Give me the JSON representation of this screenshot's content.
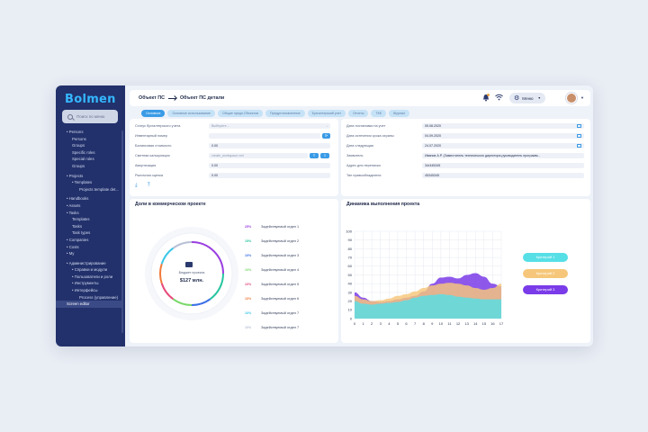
{
  "app": {
    "logo": "Bolmen"
  },
  "search": {
    "placeholder": "Поиск по меню"
  },
  "nav": [
    {
      "label": "• Persons",
      "lvl": 0
    },
    {
      "label": "Persons",
      "lvl": 1
    },
    {
      "label": "Groups",
      "lvl": 1
    },
    {
      "label": "Specific roles",
      "lvl": 1
    },
    {
      "label": "Special roles",
      "lvl": 1
    },
    {
      "label": "Groups",
      "lvl": 1
    },
    {
      "label": "• Projects",
      "lvl": 0
    },
    {
      "label": "• Templates",
      "lvl": 1
    },
    {
      "label": "Projects template det...",
      "lvl": 2
    },
    {
      "label": "• Handbooks",
      "lvl": 0
    },
    {
      "label": "• Assets",
      "lvl": 0
    },
    {
      "label": "• Tasks",
      "lvl": 0
    },
    {
      "label": "Templates",
      "lvl": 1
    },
    {
      "label": "Tasks",
      "lvl": 1
    },
    {
      "label": "Task types",
      "lvl": 1
    },
    {
      "label": "• Companies",
      "lvl": 0
    },
    {
      "label": "• Costs",
      "lvl": 0
    },
    {
      "label": "• My",
      "lvl": 0
    },
    {
      "label": "• Администрирование",
      "lvl": 0
    },
    {
      "label": "• Справки и модули",
      "lvl": 1
    },
    {
      "label": "• Пользователи и роли",
      "lvl": 1
    },
    {
      "label": "• Инструменты",
      "lvl": 1
    },
    {
      "label": "• Интерфейсы",
      "lvl": 1
    },
    {
      "label": "Process (управление)",
      "lvl": 2
    },
    {
      "label": "Screen editor",
      "lvl": 2,
      "active": true
    }
  ],
  "breadcrumb": {
    "first": "Объект ПС",
    "second": "Объект ПС детали"
  },
  "topbar": {
    "menu_label": "Меню",
    "notification_count": "1"
  },
  "tabs": [
    "Основное",
    "Основное использование",
    "Общие предл.Объектов",
    "Предустановленное",
    "Бухгалтерский учет",
    "Отчеты",
    "ТКК",
    "Журнал"
  ],
  "left_fields": {
    "status": {
      "label": "Статус бухгалтерского учета",
      "value": "Выберите..."
    },
    "inventory": {
      "label": "Инвентарный номер",
      "value": ""
    },
    "balance": {
      "label": "Балансовая стоимость",
      "value": "0.00"
    },
    "estimate": {
      "label": "Сметная калькуляция",
      "value": "create_workspace.xml"
    },
    "depreciation": {
      "label": "Амортизация",
      "value": "0.00"
    },
    "market": {
      "label": "Рыночная оценка",
      "value": "0.00"
    }
  },
  "right_fields": [
    {
      "label": "Дата постановки на учет",
      "value": "05.08.2020",
      "cal": true
    },
    {
      "label": "Дата истечения срока охраны",
      "value": "04.09.2020",
      "cal": true
    },
    {
      "label": "Дата следующая",
      "value": "24.07.2020",
      "cal": true
    },
    {
      "label": "Заявитель",
      "value": "Иванов А.Р. (Заместитель технического директора-руководитель программ...",
      "cal": false
    },
    {
      "label": "Адрес для переписки",
      "value": "34г345345",
      "cal": false
    },
    {
      "label": "Тип правообладателя",
      "value": "45345345",
      "cal": false
    }
  ],
  "pie_panel": {
    "title": "Доли в коммерческом проекте",
    "center_label": "Бюджет проекта",
    "center_value": "$127 млн.",
    "shares": [
      {
        "pct": "25%",
        "label": "Задействуемый отдел 1",
        "color": "#9b3fe0"
      },
      {
        "pct": "15%",
        "label": "Задействуемый отдел 2",
        "color": "#27c5a0"
      },
      {
        "pct": "10%",
        "label": "Задействуемый отдел 3",
        "color": "#3a6fe6"
      },
      {
        "pct": "10%",
        "label": "Задействуемый отдел 4",
        "color": "#7ad86b"
      },
      {
        "pct": "10%",
        "label": "Задействуемый отдел 5",
        "color": "#e64a7a"
      },
      {
        "pct": "10%",
        "label": "Задействуемый отдел 6",
        "color": "#f07a3a"
      },
      {
        "pct": "10%",
        "label": "Задействуемый отдел 7",
        "color": "#3ac7e8"
      },
      {
        "pct": "10%",
        "label": "Задействуемый отдел 7",
        "color": "#b8c0d6"
      }
    ]
  },
  "chart_data": {
    "type": "area",
    "title": "Динамика выполнения проекта",
    "x": [
      0,
      1,
      2,
      3,
      4,
      5,
      6,
      7,
      8,
      9,
      10,
      11,
      12,
      13,
      14,
      15,
      16,
      17
    ],
    "ylim": [
      0,
      100
    ],
    "yticks": [
      0,
      10,
      20,
      30,
      40,
      50,
      60,
      70,
      80,
      90,
      100
    ],
    "series": [
      {
        "name": "Критерий 1",
        "color": "#57dfe6",
        "values": [
          20,
          17,
          16,
          17,
          18,
          19,
          21,
          24,
          26,
          27,
          28,
          27,
          25,
          24,
          23,
          22,
          22,
          22
        ]
      },
      {
        "name": "Критерий 2",
        "color": "#f6c77a",
        "values": [
          26,
          22,
          20,
          21,
          23,
          26,
          28,
          31,
          35,
          38,
          40,
          41,
          40,
          38,
          35,
          33,
          35,
          40
        ]
      },
      {
        "name": "Критерий 3",
        "color": "#7a3be8",
        "values": [
          30,
          24,
          20,
          19,
          20,
          22,
          24,
          26,
          31,
          40,
          47,
          48,
          46,
          50,
          52,
          48,
          40,
          37
        ]
      }
    ]
  }
}
